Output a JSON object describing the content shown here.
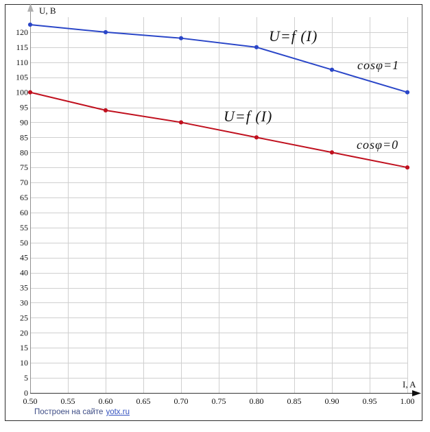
{
  "axes": {
    "y_unit_label": "U, B",
    "x_unit_label": "I, A"
  },
  "annotations": {
    "blue_curve_label": "U=f (I)",
    "blue_cos_label": "cosφ=1",
    "red_curve_label": "U=f (I)",
    "red_cos_label": "cosφ=0"
  },
  "footer": {
    "prefix": "Построен на сайте",
    "link": "yotx.ru"
  },
  "colors": {
    "grid": "#cfcfcf",
    "x_axis": "#333333",
    "y_axis": "#8f8f8f",
    "y_arrow": "#b0b0b0",
    "x_arrow": "#111111",
    "tick_text": "#111111",
    "blue_series": "#2a46c8",
    "red_series": "#c0101e"
  },
  "chart_data": {
    "type": "line",
    "title": "",
    "xlabel": "I, A",
    "ylabel": "U, B",
    "xlim": [
      0.5,
      1.0
    ],
    "ylim": [
      0,
      125
    ],
    "x_tick_step": 0.05,
    "y_tick_step": 5,
    "y_tick_max": 120,
    "x_ticks": [
      "0.50",
      "0.55",
      "0.60",
      "0.65",
      "0.70",
      "0.75",
      "0.80",
      "0.85",
      "0.90",
      "0.95",
      "1.00"
    ],
    "grid": true,
    "legend_position": "inline-annotations",
    "x": [
      0.5,
      0.6,
      0.7,
      0.8,
      0.9,
      1.0
    ],
    "series": [
      {
        "name": "cosφ=1",
        "curve_label": "U=f (I)",
        "color": "#2a46c8",
        "values": [
          122.5,
          120,
          118,
          115,
          107.5,
          100
        ]
      },
      {
        "name": "cosφ=0",
        "curve_label": "U=f (I)",
        "color": "#c0101e",
        "values": [
          100,
          94,
          90,
          85,
          80,
          75
        ]
      }
    ]
  }
}
